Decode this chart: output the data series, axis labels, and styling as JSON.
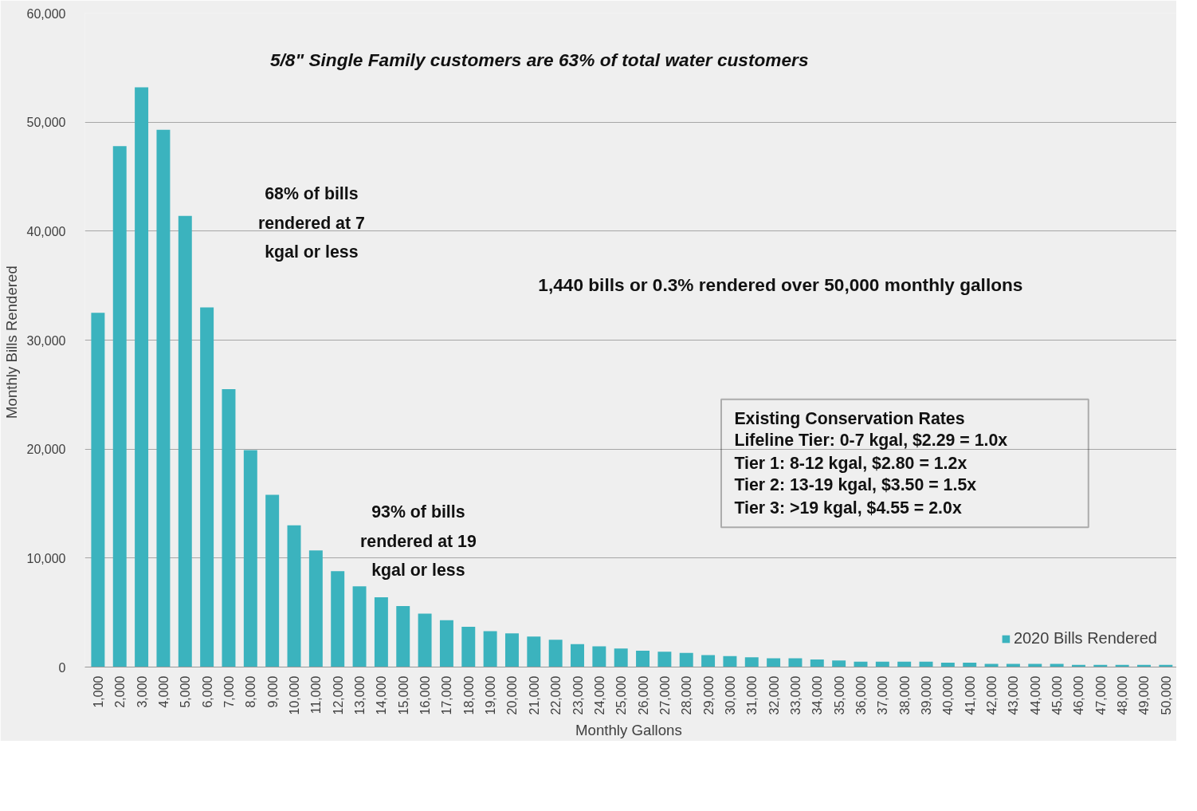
{
  "chart_data": {
    "type": "bar",
    "xlabel": "Monthly  Gallons",
    "ylabel": "Monthly  Bills Rendered",
    "categories": [
      "1,000",
      "2,000",
      "3,000",
      "4,000",
      "5,000",
      "6,000",
      "7,000",
      "8,000",
      "9,000",
      "10,000",
      "11,000",
      "12,000",
      "13,000",
      "14,000",
      "15,000",
      "16,000",
      "17,000",
      "18,000",
      "19,000",
      "20,000",
      "21,000",
      "22,000",
      "23,000",
      "24,000",
      "25,000",
      "26,000",
      "27,000",
      "28,000",
      "29,000",
      "30,000",
      "31,000",
      "32,000",
      "33,000",
      "34,000",
      "35,000",
      "36,000",
      "37,000",
      "38,000",
      "39,000",
      "40,000",
      "41,000",
      "42,000",
      "43,000",
      "44,000",
      "45,000",
      "46,000",
      "47,000",
      "48,000",
      "49,000",
      "50,000"
    ],
    "series": [
      {
        "name": "2020 Bills Rendered",
        "color": "#3bb3be",
        "values": [
          32500,
          47800,
          53200,
          49300,
          41400,
          33000,
          25500,
          19900,
          15800,
          13000,
          10700,
          8800,
          7400,
          6400,
          5600,
          4900,
          4300,
          3700,
          3300,
          3100,
          2800,
          2500,
          2100,
          1900,
          1700,
          1500,
          1400,
          1300,
          1100,
          1000,
          900,
          800,
          800,
          700,
          600,
          500,
          500,
          500,
          500,
          400,
          400,
          300,
          300,
          300,
          300,
          200,
          200,
          200,
          200,
          200
        ]
      }
    ],
    "ylim": [
      0,
      60000
    ],
    "yticks": [
      {
        "value": 0,
        "label": "0"
      },
      {
        "value": 10000,
        "label": "10,000"
      },
      {
        "value": 20000,
        "label": "20,000"
      },
      {
        "value": 30000,
        "label": "30,000"
      },
      {
        "value": 40000,
        "label": "40,000"
      },
      {
        "value": 50000,
        "label": "50,000"
      },
      {
        "value": 60000,
        "label": "60,000"
      }
    ],
    "grid": "y",
    "legend": "bottom right",
    "annotations": [
      "5/8\" Single Family customers  are 63% of total water customers",
      "68% of bills\nrendered at 7\nkgal or less",
      "1,440 bills or 0.3% rendered over 50,000 monthly gallons",
      "Existing Conservation Rates",
      "Lifeline Tier: 0-7 kgal, $2.29 = 1.0x",
      "Tier 1: 8-12 kgal, $2.80 = 1.2x",
      "Tier 2: 13-19 kgal, $3.50 = 1.5x",
      "Tier 3: >19 kgal, $4.55 = 2.0x",
      "93% of bills\nrendered at 19\nkgal or less"
    ]
  }
}
